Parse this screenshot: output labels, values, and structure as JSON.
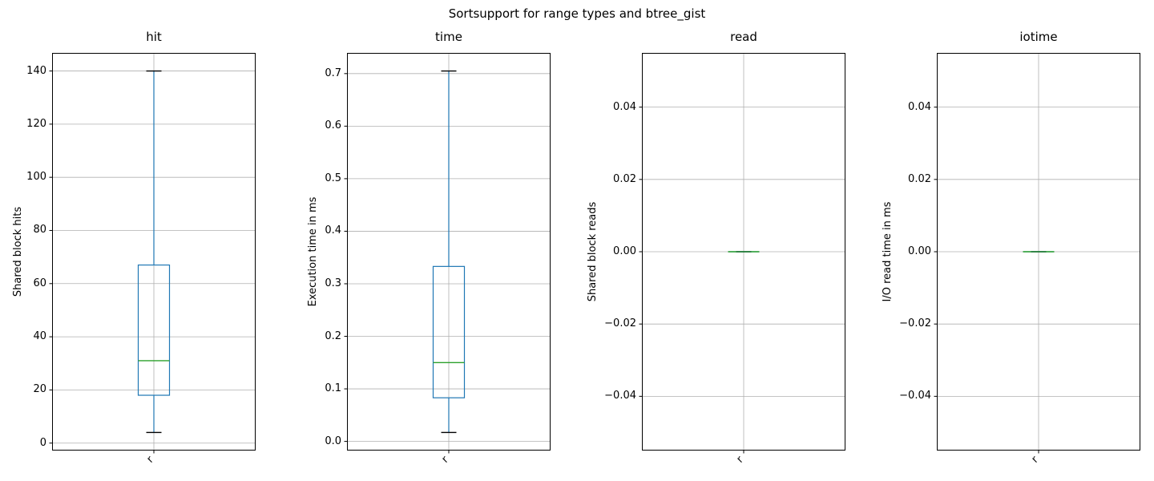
{
  "figure": {
    "title": "Sortsupport for range types and btree_gist",
    "background": "#ffffff"
  },
  "colors": {
    "box": "#1f77b4",
    "whisker": "#1f77b4",
    "median": "#2ca02c",
    "cap": "#000000",
    "cap_over_median_blend": "#2b7f3e",
    "grid": "#b0b0b0",
    "axes_border": "#000000",
    "text": "#000000"
  },
  "chart_data": [
    {
      "type": "boxplot",
      "title": "hit",
      "ylabel": "Shared block hits",
      "xticklabels": [
        "r"
      ],
      "yticks": [
        0,
        20,
        40,
        60,
        80,
        100,
        120,
        140
      ],
      "ytick_labels": [
        "0",
        "20",
        "40",
        "60",
        "80",
        "100",
        "120",
        "140"
      ],
      "ylim": [
        -2.8,
        146.8
      ],
      "grid": true,
      "stats": {
        "whisker_low": 4,
        "q1": 18,
        "median": 31,
        "q3": 67,
        "whisker_high": 140
      }
    },
    {
      "type": "boxplot",
      "title": "time",
      "ylabel": "Execution time in ms",
      "xticklabels": [
        "r"
      ],
      "yticks": [
        0.0,
        0.1,
        0.2,
        0.3,
        0.4,
        0.5,
        0.6,
        0.7
      ],
      "ytick_labels": [
        "0.0",
        "0.1",
        "0.2",
        "0.3",
        "0.4",
        "0.5",
        "0.6",
        "0.7"
      ],
      "ylim": [
        -0.0174,
        0.7394
      ],
      "grid": true,
      "stats": {
        "whisker_low": 0.017,
        "q1": 0.083,
        "median": 0.15,
        "q3": 0.333,
        "whisker_high": 0.705
      }
    },
    {
      "type": "boxplot",
      "title": "read",
      "ylabel": "Shared block reads",
      "xticklabels": [
        "r"
      ],
      "yticks": [
        -0.04,
        -0.02,
        0.0,
        0.02,
        0.04
      ],
      "ytick_labels": [
        "−0.04",
        "−0.02",
        "0.00",
        "0.02",
        "0.04"
      ],
      "ylim": [
        -0.055,
        0.055
      ],
      "grid": true,
      "stats": {
        "whisker_low": 0,
        "q1": 0,
        "median": 0,
        "q3": 0,
        "whisker_high": 0
      }
    },
    {
      "type": "boxplot",
      "title": "iotime",
      "ylabel": "I/O read time in ms",
      "xticklabels": [
        "r"
      ],
      "yticks": [
        -0.04,
        -0.02,
        0.0,
        0.02,
        0.04
      ],
      "ytick_labels": [
        "−0.04",
        "−0.02",
        "0.00",
        "0.02",
        "0.04"
      ],
      "ylim": [
        -0.055,
        0.055
      ],
      "grid": true,
      "stats": {
        "whisker_low": 0,
        "q1": 0,
        "median": 0,
        "q3": 0,
        "whisker_high": 0
      }
    }
  ]
}
